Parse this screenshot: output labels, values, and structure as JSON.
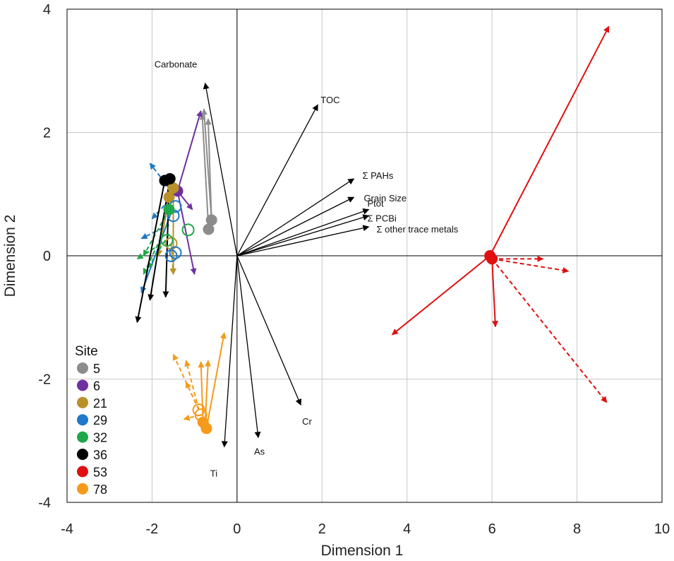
{
  "chart_data": {
    "type": "scatter",
    "subtype": "PCA biplot with site trajectories",
    "xlabel": "Dimension 1",
    "ylabel": "Dimension 2",
    "xlim": [
      -4,
      10
    ],
    "ylim": [
      -4,
      4
    ],
    "xticks": [
      -4,
      -2,
      0,
      2,
      4,
      6,
      8,
      10
    ],
    "yticks": [
      -4,
      -2,
      0,
      2,
      4
    ],
    "grid": true,
    "loadings": [
      {
        "label": "Carbonate",
        "x": -0.75,
        "y": 2.8
      },
      {
        "label": "TOC",
        "x": 1.9,
        "y": 2.45
      },
      {
        "label": "Σ PAHs",
        "x": 2.75,
        "y": 1.25
      },
      {
        "label": "Grain Size",
        "x": 2.75,
        "y": 0.95
      },
      {
        "label": "Ptot",
        "x": 3.1,
        "y": 0.75
      },
      {
        "label": "Σ PCBi",
        "x": 3.1,
        "y": 0.65
      },
      {
        "label": "Σ other trace metals",
        "x": 3.1,
        "y": 0.47
      },
      {
        "label": "Cr",
        "x": 1.5,
        "y": -2.42
      },
      {
        "label": "As",
        "x": 0.5,
        "y": -2.95
      },
      {
        "label": "Ti",
        "x": -0.3,
        "y": -3.1
      }
    ],
    "legend": {
      "title": "Site",
      "position": "bottom-left",
      "entries": [
        {
          "label": "5",
          "color": "#8c8c8c"
        },
        {
          "label": "6",
          "color": "#7030a0"
        },
        {
          "label": "21",
          "color": "#b8912a"
        },
        {
          "label": "29",
          "color": "#1f78c8"
        },
        {
          "label": "32",
          "color": "#1fa84a"
        },
        {
          "label": "36",
          "color": "#000000"
        },
        {
          "label": "53",
          "color": "#e01010"
        },
        {
          "label": "78",
          "color": "#f59a1a"
        }
      ]
    },
    "sites": [
      {
        "name": "5",
        "color": "#8c8c8c",
        "points": [
          {
            "x": -0.6,
            "y": 0.58,
            "hollow": false
          },
          {
            "x": -0.67,
            "y": 0.43,
            "hollow": false
          }
        ],
        "arrows": [
          {
            "x1": -0.6,
            "y1": 0.58,
            "x2": -0.78,
            "y2": 2.38,
            "dashed": false
          },
          {
            "x1": -0.6,
            "y1": 0.58,
            "x2": -0.68,
            "y2": 2.22,
            "dashed": false
          },
          {
            "x1": -0.67,
            "y1": 0.43,
            "x2": -0.82,
            "y2": 2.3,
            "dashed": false
          }
        ]
      },
      {
        "name": "6",
        "color": "#7030a0",
        "points": [
          {
            "x": -1.4,
            "y": 1.05,
            "hollow": false
          }
        ],
        "arrows": [
          {
            "x1": -1.4,
            "y1": 1.05,
            "x2": -0.85,
            "y2": 2.35,
            "dashed": false
          },
          {
            "x1": -1.4,
            "y1": 1.05,
            "x2": -1.0,
            "y2": -0.3,
            "dashed": false
          },
          {
            "x1": -1.4,
            "y1": 1.05,
            "x2": -1.05,
            "y2": 0.75,
            "dashed": false
          }
        ]
      },
      {
        "name": "21",
        "color": "#b8912a",
        "points": [
          {
            "x": -1.5,
            "y": 1.1,
            "hollow": false
          },
          {
            "x": -1.6,
            "y": 0.95,
            "hollow": false
          },
          {
            "x": -1.55,
            "y": 0.2,
            "hollow": true
          }
        ],
        "arrows": [
          {
            "x1": -1.5,
            "y1": 1.1,
            "x2": -1.5,
            "y2": -0.3,
            "dashed": false
          },
          {
            "x1": -1.6,
            "y1": 0.95,
            "x2": -1.85,
            "y2": 0.0,
            "dashed": false
          },
          {
            "x1": -1.55,
            "y1": 0.2,
            "x2": -1.5,
            "y2": -0.3,
            "dashed": true
          }
        ]
      },
      {
        "name": "29",
        "color": "#1f78c8",
        "points": [
          {
            "x": -1.45,
            "y": 0.8,
            "hollow": true
          },
          {
            "x": -1.5,
            "y": 0.65,
            "hollow": true
          },
          {
            "x": -1.45,
            "y": 0.05,
            "hollow": true
          },
          {
            "x": -1.55,
            "y": 0.0,
            "hollow": true
          }
        ],
        "arrows": [
          {
            "x1": -1.6,
            "y1": 1.1,
            "x2": -2.05,
            "y2": 1.5,
            "dashed": true
          },
          {
            "x1": -1.6,
            "y1": 0.9,
            "x2": -2.0,
            "y2": 0.6,
            "dashed": true
          },
          {
            "x1": -1.55,
            "y1": 0.7,
            "x2": -2.25,
            "y2": -0.6,
            "dashed": false
          },
          {
            "x1": -1.6,
            "y1": 0.5,
            "x2": -2.25,
            "y2": 0.28,
            "dashed": true
          }
        ]
      },
      {
        "name": "32",
        "color": "#1fa84a",
        "points": [
          {
            "x": -1.15,
            "y": 0.42,
            "hollow": true
          },
          {
            "x": -1.6,
            "y": 0.75,
            "hollow": false
          },
          {
            "x": -1.65,
            "y": 0.25,
            "hollow": true
          }
        ],
        "arrows": [
          {
            "x1": -1.6,
            "y1": 0.75,
            "x2": -2.2,
            "y2": 0.0,
            "dashed": true
          },
          {
            "x1": -1.65,
            "y1": 0.5,
            "x2": -2.2,
            "y2": -0.3,
            "dashed": true
          },
          {
            "x1": -1.65,
            "y1": 0.25,
            "x2": -2.35,
            "y2": -0.05,
            "dashed": true
          },
          {
            "x1": -1.6,
            "y1": 0.35,
            "x2": -2.1,
            "y2": -0.2,
            "dashed": true
          }
        ]
      },
      {
        "name": "36",
        "color": "#000000",
        "points": [
          {
            "x": -1.58,
            "y": 1.25,
            "hollow": false
          },
          {
            "x": -1.7,
            "y": 1.22,
            "hollow": false
          }
        ],
        "arrows": [
          {
            "x1": -1.7,
            "y1": 1.22,
            "x2": -2.35,
            "y2": -1.08,
            "dashed": false
          },
          {
            "x1": -1.58,
            "y1": 1.25,
            "x2": -2.05,
            "y2": -0.72,
            "dashed": false
          },
          {
            "x1": -1.6,
            "y1": 1.15,
            "x2": -1.68,
            "y2": -0.67,
            "dashed": false
          }
        ]
      },
      {
        "name": "53",
        "color": "#e01010",
        "points": [
          {
            "x": 5.95,
            "y": 0.0,
            "hollow": false
          },
          {
            "x": 6.0,
            "y": -0.05,
            "hollow": false
          }
        ],
        "arrows": [
          {
            "x1": 5.95,
            "y1": 0.0,
            "x2": 8.75,
            "y2": 3.72,
            "dashed": false
          },
          {
            "x1": 5.95,
            "y1": 0.0,
            "x2": 3.65,
            "y2": -1.28,
            "dashed": false
          },
          {
            "x1": 6.0,
            "y1": -0.05,
            "x2": 6.08,
            "y2": -1.15,
            "dashed": false
          },
          {
            "x1": 6.0,
            "y1": -0.05,
            "x2": 8.7,
            "y2": -2.38,
            "dashed": true
          },
          {
            "x1": 6.0,
            "y1": -0.05,
            "x2": 7.8,
            "y2": -0.25,
            "dashed": true
          },
          {
            "x1": 6.0,
            "y1": -0.05,
            "x2": 7.2,
            "y2": -0.05,
            "dashed": true
          }
        ]
      },
      {
        "name": "78",
        "color": "#f59a1a",
        "points": [
          {
            "x": -0.9,
            "y": -2.5,
            "hollow": true
          },
          {
            "x": -0.85,
            "y": -2.58,
            "hollow": true
          },
          {
            "x": -0.8,
            "y": -2.7,
            "hollow": false
          },
          {
            "x": -0.72,
            "y": -2.8,
            "hollow": false
          }
        ],
        "arrows": [
          {
            "x1": -0.72,
            "y1": -2.8,
            "x2": -0.3,
            "y2": -1.25,
            "dashed": false
          },
          {
            "x1": -0.75,
            "y1": -2.75,
            "x2": -0.68,
            "y2": -1.7,
            "dashed": false
          },
          {
            "x1": -0.8,
            "y1": -2.7,
            "x2": -0.85,
            "y2": -1.72,
            "dashed": false
          },
          {
            "x1": -0.9,
            "y1": -2.5,
            "x2": -1.5,
            "y2": -1.6,
            "dashed": true
          },
          {
            "x1": -0.9,
            "y1": -2.5,
            "x2": -1.2,
            "y2": -1.7,
            "dashed": true
          },
          {
            "x1": -0.9,
            "y1": -2.5,
            "x2": -1.2,
            "y2": -2.05,
            "dashed": true
          },
          {
            "x1": -0.85,
            "y1": -2.58,
            "x2": -1.25,
            "y2": -2.65,
            "dashed": true
          }
        ]
      }
    ]
  }
}
